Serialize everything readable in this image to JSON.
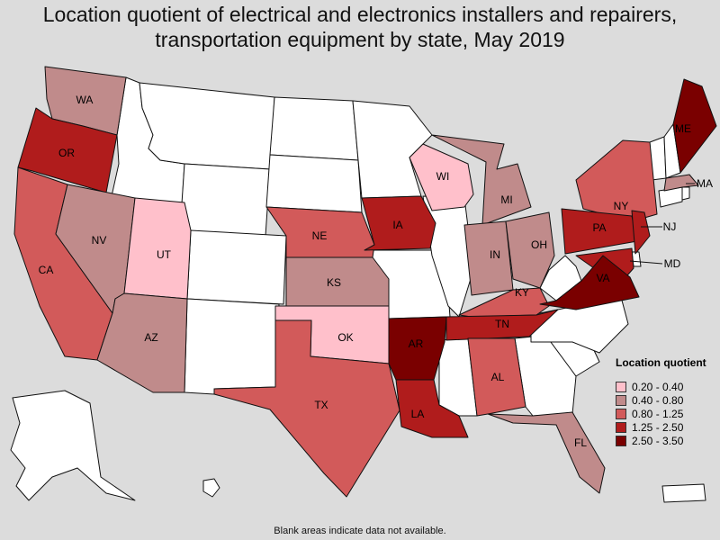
{
  "title": "Location quotient of electrical and electronics installers and repairers, transportation equipment by state, May 2019",
  "legend": {
    "title": "Location quotient",
    "items": [
      {
        "label": "0.20 - 0.40",
        "color": "#ffc0cb"
      },
      {
        "label": "0.40 - 0.80",
        "color": "#c08b8b"
      },
      {
        "label": "0.80 - 1.25",
        "color": "#d25a5a"
      },
      {
        "label": "1.25 - 2.50",
        "color": "#b01c1c"
      },
      {
        "label": "2.50 - 3.50",
        "color": "#7a0000"
      }
    ]
  },
  "no_data_color": "#ffffff",
  "footnote": "Blank areas indicate data not available.",
  "states": {
    "WA": {
      "label": "WA",
      "class": 1
    },
    "OR": {
      "label": "OR",
      "class": 3
    },
    "CA": {
      "label": "CA",
      "class": 2
    },
    "NV": {
      "label": "NV",
      "class": 1
    },
    "UT": {
      "label": "UT",
      "class": 0
    },
    "AZ": {
      "label": "AZ",
      "class": 1
    },
    "NE": {
      "label": "NE",
      "class": 2
    },
    "KS": {
      "label": "KS",
      "class": 1
    },
    "OK": {
      "label": "OK",
      "class": 0
    },
    "TX": {
      "label": "TX",
      "class": 2
    },
    "IA": {
      "label": "IA",
      "class": 3
    },
    "AR": {
      "label": "AR",
      "class": 4
    },
    "LA": {
      "label": "LA",
      "class": 3
    },
    "WI": {
      "label": "WI",
      "class": 0
    },
    "MI": {
      "label": "MI",
      "class": 1
    },
    "IN": {
      "label": "IN",
      "class": 1
    },
    "OH": {
      "label": "OH",
      "class": 1
    },
    "KY": {
      "label": "KY",
      "class": 2
    },
    "TN": {
      "label": "TN",
      "class": 3
    },
    "AL": {
      "label": "AL",
      "class": 2
    },
    "FL": {
      "label": "FL",
      "class": 1
    },
    "NY": {
      "label": "NY",
      "class": 2
    },
    "PA": {
      "label": "PA",
      "class": 3
    },
    "NJ": {
      "label": "NJ",
      "class": 3
    },
    "MD": {
      "label": "MD",
      "class": 3
    },
    "VA": {
      "label": "VA",
      "class": 4
    },
    "ME": {
      "label": "ME",
      "class": 4
    },
    "MA": {
      "label": "MA",
      "class": 1
    }
  }
}
